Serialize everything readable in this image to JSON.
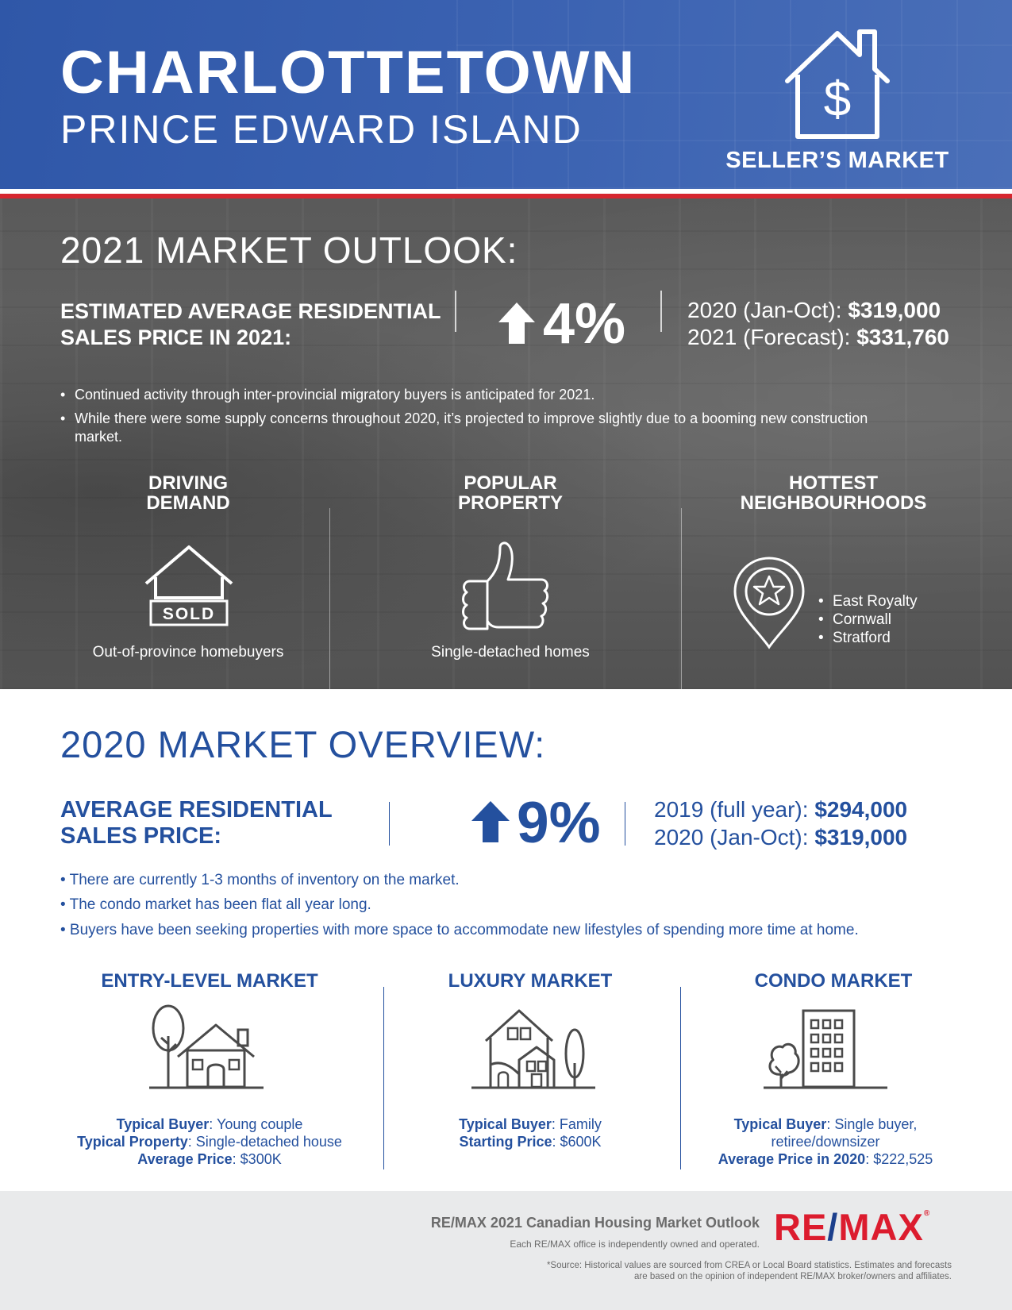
{
  "header": {
    "city": "CHARLOTTETOWN",
    "province": "PRINCE EDWARD ISLAND",
    "market_type": "SELLER’S MARKET",
    "icon": "house-dollar-icon"
  },
  "outlook": {
    "heading": "2021 MARKET OUTLOOK:",
    "price_label": "ESTIMATED AVERAGE RESIDENTIAL SALES PRICE IN 2021:",
    "change_direction": "up",
    "change": "4%",
    "stats": [
      {
        "label": "2020 (Jan-Oct): ",
        "value": "$319,000"
      },
      {
        "label": "2021 (Forecast): ",
        "value": "$331,760"
      }
    ],
    "bullets": [
      "Continued activity through inter-provincial migratory buyers is anticipated for 2021.",
      "While there were some supply concerns throughout 2020, it’s projected to improve slightly due to a booming new construction market."
    ],
    "columns": {
      "driving_demand": {
        "title_line1": "DRIVING",
        "title_line2": "DEMAND",
        "icon_text": "SOLD",
        "caption": "Out-of-province homebuyers"
      },
      "popular_property": {
        "title_line1": "POPULAR",
        "title_line2": "PROPERTY",
        "caption": "Single-detached homes"
      },
      "hottest_neighbourhoods": {
        "title_line1": "HOTTEST",
        "title_line2": "NEIGHBOURHOODS",
        "items": [
          "East Royalty",
          "Cornwall",
          "Stratford"
        ]
      }
    }
  },
  "overview": {
    "heading": "2020 MARKET OVERVIEW:",
    "price_label": "AVERAGE RESIDENTIAL SALES PRICE:",
    "change_direction": "up",
    "change": "9%",
    "stats": [
      {
        "label": "2019 (full year): ",
        "value": "$294,000"
      },
      {
        "label": "2020 (Jan-Oct): ",
        "value": "$319,000"
      }
    ],
    "bullets": [
      "• There are currently 1-3 months of inventory on the market.",
      "• The condo market has been flat all year long.",
      "• Buyers have been seeking properties with more space to accommodate new lifestyles of spending more time at home."
    ],
    "markets": {
      "entry": {
        "title": "ENTRY-LEVEL MARKET",
        "rows": [
          {
            "label": "Typical Buyer",
            "value": ": Young couple"
          },
          {
            "label": "Typical Property",
            "value": ": Single-detached house"
          },
          {
            "label": "Average Price",
            "value": ": $300K"
          }
        ]
      },
      "luxury": {
        "title": "LUXURY MARKET",
        "rows": [
          {
            "label": "Typical Buyer",
            "value": ": Family"
          },
          {
            "label": "Starting Price",
            "value": ": $600K"
          }
        ]
      },
      "condo": {
        "title": "CONDO MARKET",
        "rows": [
          {
            "label": "Typical Buyer",
            "value": ": Single buyer,"
          },
          {
            "label": "",
            "value": "retiree/downsizer"
          },
          {
            "label": "Average Price in 2020",
            "value": ": $222,525"
          }
        ]
      }
    }
  },
  "footer": {
    "title": "RE/MAX 2021 Canadian Housing Market Outlook",
    "owned": "Each RE/MAX office is independently owned and operated.",
    "source_line1": "*Source: Historical values are sourced from CREA or Local Board statistics. Estimates and forecasts",
    "source_line2": "are based on the opinion of independent RE/MAX broker/owners and affiliates.",
    "logo": {
      "part1": "RE",
      "slash": "/",
      "part2": "MAX",
      "mark": "®"
    }
  },
  "colors": {
    "header_blue": "#3b62b0",
    "brand_blue": "#24509e",
    "accent_red": "#d6262f",
    "remax_red": "#dc1c2e",
    "outlook_gray": "#5e5e5e",
    "footer_gray": "#e9eaeb"
  }
}
